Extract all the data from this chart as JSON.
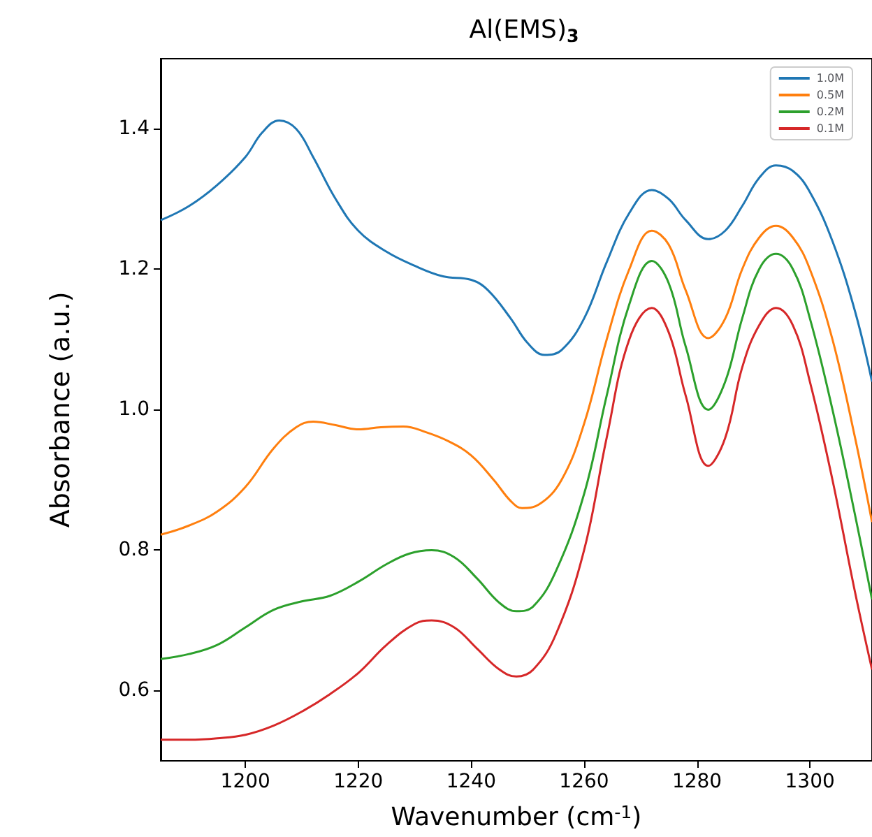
{
  "chart_data": {
    "type": "line",
    "title": "Al(EMS)$_{3}$",
    "xlabel": "Wavenumber (cm$^{-1}$)",
    "ylabel": "Absorbance (a.u.)",
    "xlim": [
      1185,
      1311
    ],
    "xticks": [
      1200,
      1220,
      1240,
      1260,
      1280,
      1300
    ],
    "ylim": [
      0.5,
      1.5
    ],
    "yticks": [
      {
        "value": 0.6,
        "label": "0.6"
      },
      {
        "value": 0.8,
        "label": "0.8"
      },
      {
        "value": 1.0,
        "label": "1.0"
      },
      {
        "value": 1.2,
        "label": "1.2"
      },
      {
        "value": 1.4,
        "label": "1.4"
      }
    ],
    "grid": false,
    "legend": "top right",
    "marker": "none",
    "line_style": "solid",
    "series": [
      {
        "name": "1.0M",
        "color": "#1f77b4",
        "x": [
          1185,
          1190,
          1195,
          1200,
          1203,
          1206,
          1209,
          1212,
          1216,
          1220,
          1225,
          1230,
          1235,
          1240,
          1243,
          1247,
          1250,
          1253,
          1256,
          1260,
          1264,
          1268,
          1272,
          1275,
          1278,
          1282,
          1285,
          1288,
          1291,
          1294,
          1297,
          1300,
          1304,
          1308,
          1311
        ],
        "values": [
          1.27,
          1.29,
          1.32,
          1.36,
          1.395,
          1.412,
          1.4,
          1.36,
          1.3,
          1.255,
          1.225,
          1.205,
          1.19,
          1.185,
          1.17,
          1.13,
          1.095,
          1.078,
          1.085,
          1.13,
          1.21,
          1.28,
          1.313,
          1.3,
          1.27,
          1.243,
          1.255,
          1.29,
          1.33,
          1.348,
          1.34,
          1.31,
          1.24,
          1.14,
          1.04
        ]
      },
      {
        "name": "0.5M",
        "color": "#ff7f0e",
        "x": [
          1185,
          1190,
          1195,
          1200,
          1205,
          1209,
          1212,
          1216,
          1220,
          1224,
          1228,
          1232,
          1236,
          1240,
          1244,
          1247,
          1249,
          1252,
          1256,
          1260,
          1264,
          1268,
          1272,
          1275,
          1278,
          1282,
          1285,
          1288,
          1291,
          1294,
          1297,
          1300,
          1304,
          1308,
          1311
        ],
        "values": [
          0.822,
          0.835,
          0.855,
          0.89,
          0.945,
          0.975,
          0.983,
          0.978,
          0.972,
          0.975,
          0.976,
          0.968,
          0.955,
          0.935,
          0.9,
          0.87,
          0.86,
          0.865,
          0.9,
          0.98,
          1.1,
          1.2,
          1.255,
          1.235,
          1.17,
          1.102,
          1.13,
          1.2,
          1.245,
          1.262,
          1.245,
          1.2,
          1.1,
          0.96,
          0.84
        ]
      },
      {
        "name": "0.2M",
        "color": "#2ca02c",
        "x": [
          1185,
          1190,
          1195,
          1200,
          1205,
          1210,
          1215,
          1220,
          1225,
          1229,
          1233,
          1237,
          1241,
          1245,
          1248,
          1251,
          1255,
          1260,
          1264,
          1268,
          1272,
          1275,
          1278,
          1282,
          1285,
          1288,
          1291,
          1294,
          1297,
          1300,
          1304,
          1308,
          1311
        ],
        "values": [
          0.645,
          0.652,
          0.665,
          0.69,
          0.715,
          0.727,
          0.735,
          0.755,
          0.78,
          0.795,
          0.8,
          0.79,
          0.76,
          0.725,
          0.713,
          0.72,
          0.77,
          0.88,
          1.02,
          1.15,
          1.212,
          1.18,
          1.09,
          1.0,
          1.04,
          1.13,
          1.2,
          1.222,
          1.2,
          1.13,
          1.0,
          0.85,
          0.73
        ]
      },
      {
        "name": "0.1M",
        "color": "#d62728",
        "x": [
          1185,
          1190,
          1195,
          1200,
          1205,
          1210,
          1215,
          1220,
          1225,
          1230,
          1233,
          1237,
          1241,
          1245,
          1248,
          1251,
          1255,
          1260,
          1264,
          1268,
          1272,
          1275,
          1278,
          1282,
          1285,
          1288,
          1291,
          1294,
          1297,
          1300,
          1304,
          1308,
          1311
        ],
        "values": [
          0.53,
          0.53,
          0.532,
          0.537,
          0.55,
          0.57,
          0.595,
          0.625,
          0.665,
          0.695,
          0.7,
          0.69,
          0.66,
          0.63,
          0.62,
          0.63,
          0.68,
          0.8,
          0.96,
          1.1,
          1.145,
          1.11,
          1.02,
          0.92,
          0.96,
          1.06,
          1.12,
          1.145,
          1.12,
          1.04,
          0.9,
          0.74,
          0.63
        ]
      }
    ]
  }
}
